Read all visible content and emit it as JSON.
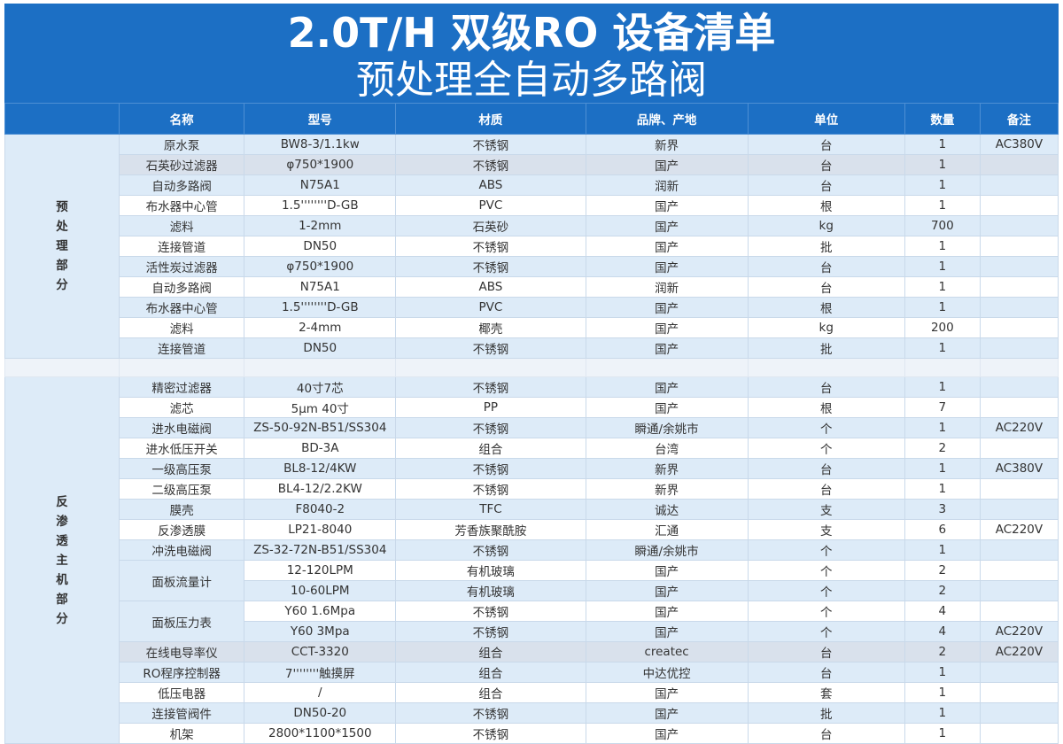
{
  "title": {
    "line1": "2.0T/H 双级RO 设备清单",
    "line2": "预处理全自动多路阀"
  },
  "columns": [
    "名称",
    "型号",
    "材质",
    "品牌、产地",
    "单位",
    "数量",
    "备注"
  ],
  "sections": {
    "pretreatment": {
      "label_chars": [
        "预",
        "处",
        "理",
        "部",
        "分"
      ]
    },
    "ro": {
      "label_chars": [
        "反",
        "渗",
        "透",
        "主",
        "机",
        "部",
        "分"
      ]
    }
  },
  "pretreatment_rows": [
    {
      "name": "原水泵",
      "model": "BW8-3/1.1kw",
      "material": "不锈钢",
      "brand": "新界",
      "unit": "台",
      "qty": "1",
      "note": "AC380V"
    },
    {
      "name": "石英砂过滤器",
      "model": "φ750*1900",
      "material": "不锈钢",
      "brand": "国产",
      "unit": "台",
      "qty": "1",
      "note": ""
    },
    {
      "name": "自动多路阀",
      "model": "N75A1",
      "material": "ABS",
      "brand": "润新",
      "unit": "台",
      "qty": "1",
      "note": ""
    },
    {
      "name": "布水器中心管",
      "model": "1.5''''''''D-GB",
      "material": "PVC",
      "brand": "国产",
      "unit": "根",
      "qty": "1",
      "note": ""
    },
    {
      "name": "滤料",
      "model": "1-2mm",
      "material": "石英砂",
      "brand": "国产",
      "unit": "kg",
      "qty": "700",
      "note": ""
    },
    {
      "name": "连接管道",
      "model": "DN50",
      "material": "不锈钢",
      "brand": "国产",
      "unit": "批",
      "qty": "1",
      "note": ""
    },
    {
      "name": "活性炭过滤器",
      "model": "φ750*1900",
      "material": "不锈钢",
      "brand": "国产",
      "unit": "台",
      "qty": "1",
      "note": ""
    },
    {
      "name": "自动多路阀",
      "model": "N75A1",
      "material": "ABS",
      "brand": "润新",
      "unit": "台",
      "qty": "1",
      "note": ""
    },
    {
      "name": "布水器中心管",
      "model": "1.5''''''''D-GB",
      "material": "PVC",
      "brand": "国产",
      "unit": "根",
      "qty": "1",
      "note": ""
    },
    {
      "name": "滤料",
      "model": "2-4mm",
      "material": "椰壳",
      "brand": "国产",
      "unit": "kg",
      "qty": "200",
      "note": ""
    },
    {
      "name": "连接管道",
      "model": "DN50",
      "material": "不锈钢",
      "brand": "国产",
      "unit": "批",
      "qty": "1",
      "note": ""
    }
  ],
  "ro_rows": [
    {
      "name": "精密过滤器",
      "model": "40寸7芯",
      "material": "不锈钢",
      "brand": "国产",
      "unit": "台",
      "qty": "1",
      "note": ""
    },
    {
      "name": "滤芯",
      "model": "5μm 40寸",
      "material": "PP",
      "brand": "国产",
      "unit": "根",
      "qty": "7",
      "note": ""
    },
    {
      "name": "进水电磁阀",
      "model": "ZS-50-92N-B51/SS304",
      "material": "不锈钢",
      "brand": "瞬通/余姚市",
      "unit": "个",
      "qty": "1",
      "note": "AC220V"
    },
    {
      "name": "进水低压开关",
      "model": "BD-3A",
      "material": "组合",
      "brand": "台湾",
      "unit": "个",
      "qty": "2",
      "note": ""
    },
    {
      "name": "一级高压泵",
      "model": "BL8-12/4KW",
      "material": "不锈钢",
      "brand": "新界",
      "unit": "台",
      "qty": "1",
      "note": "AC380V"
    },
    {
      "name": "二级高压泵",
      "model": "BL4-12/2.2KW",
      "material": "不锈钢",
      "brand": "新界",
      "unit": "台",
      "qty": "1",
      "note": ""
    },
    {
      "name": "膜壳",
      "model": "F8040-2",
      "material": "TFC",
      "brand": "诚达",
      "unit": "支",
      "qty": "3",
      "note": ""
    },
    {
      "name": "反渗透膜",
      "model": "LP21-8040",
      "material": "芳香族聚酰胺",
      "brand": "汇通",
      "unit": "支",
      "qty": "6",
      "note": "AC220V"
    },
    {
      "name": "冲洗电磁阀",
      "model": "ZS-32-72N-B51/SS304",
      "material": "不锈钢",
      "brand": "瞬通/余姚市",
      "unit": "个",
      "qty": "1",
      "note": ""
    },
    {
      "name": "面板流量计",
      "model": "12-120LPM",
      "material": "有机玻璃",
      "brand": "国产",
      "unit": "个",
      "qty": "2",
      "note": ""
    },
    {
      "name": "",
      "model": "10-60LPM",
      "material": "有机玻璃",
      "brand": "国产",
      "unit": "个",
      "qty": "2",
      "note": ""
    },
    {
      "name": "面板压力表",
      "model": "Y60 1.6Mpa",
      "material": "不锈钢",
      "brand": "国产",
      "unit": "个",
      "qty": "4",
      "note": ""
    },
    {
      "name": "",
      "model": "Y60 3Mpa",
      "material": "不锈钢",
      "brand": "国产",
      "unit": "个",
      "qty": "4",
      "note": "AC220V"
    },
    {
      "name": "在线电导率仪",
      "model": "CCT-3320",
      "material": "组合",
      "brand": "createc",
      "unit": "台",
      "qty": "2",
      "note": "AC220V"
    },
    {
      "name": "RO程序控制器",
      "model": "7''''''''触摸屏",
      "material": "组合",
      "brand": "中达优控",
      "unit": "台",
      "qty": "1",
      "note": ""
    },
    {
      "name": "低压电器",
      "model": "/",
      "material": "组合",
      "brand": "国产",
      "unit": "套",
      "qty": "1",
      "note": ""
    },
    {
      "name": "连接管阀件",
      "model": "DN50-20",
      "material": "不锈钢",
      "brand": "国产",
      "unit": "批",
      "qty": "1",
      "note": ""
    },
    {
      "name": "机架",
      "model": "2800*1100*1500",
      "material": "不锈钢",
      "brand": "国产",
      "unit": "台",
      "qty": "1",
      "note": ""
    }
  ]
}
